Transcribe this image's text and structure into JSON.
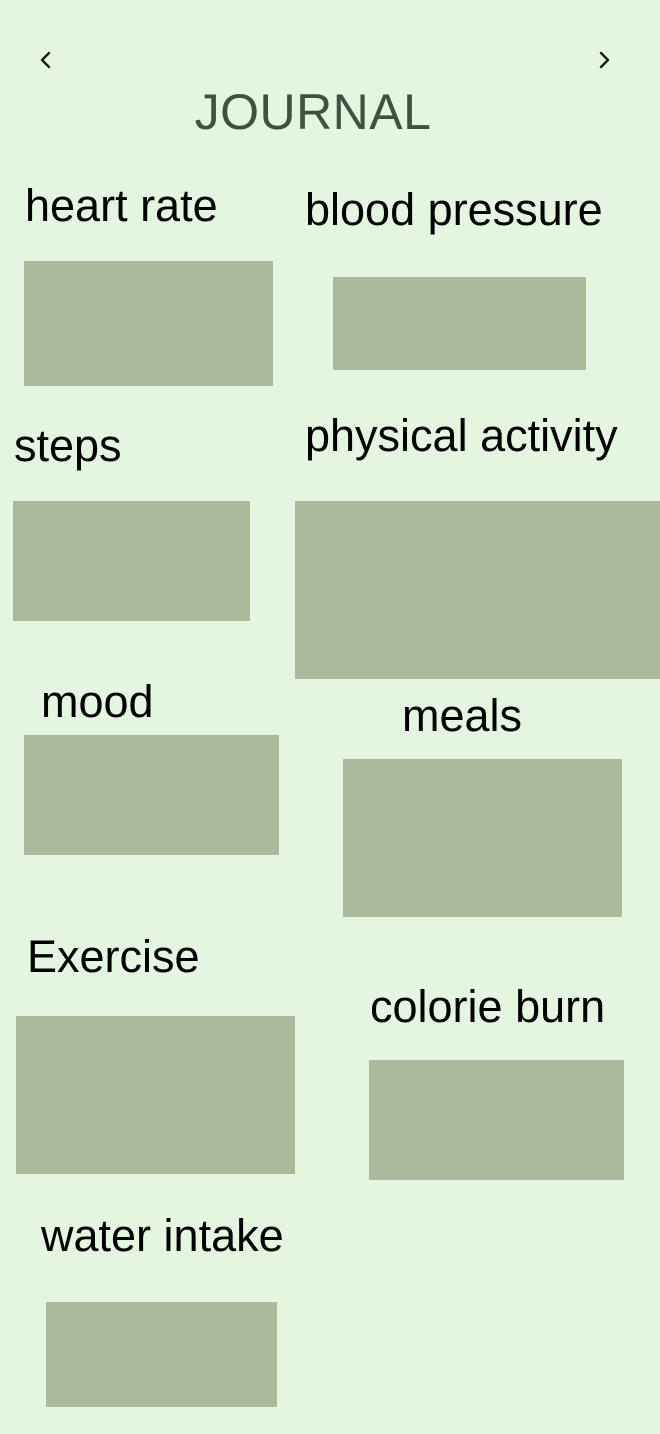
{
  "header": {
    "title": "JOURNAL",
    "prev_icon": "chevron-left-icon",
    "next_icon": "chevron-right-icon"
  },
  "tiles": [
    {
      "label": "heart rate"
    },
    {
      "label": "blood pressure"
    },
    {
      "label": "steps"
    },
    {
      "label": "physical activity"
    },
    {
      "label": "mood"
    },
    {
      "label": "meals"
    },
    {
      "label": "Exercise"
    },
    {
      "label": "colorie burn"
    },
    {
      "label": "water intake"
    }
  ],
  "colors": {
    "background": "#e4f6e0",
    "tile": "#abba9b",
    "title": "#3f5240"
  }
}
